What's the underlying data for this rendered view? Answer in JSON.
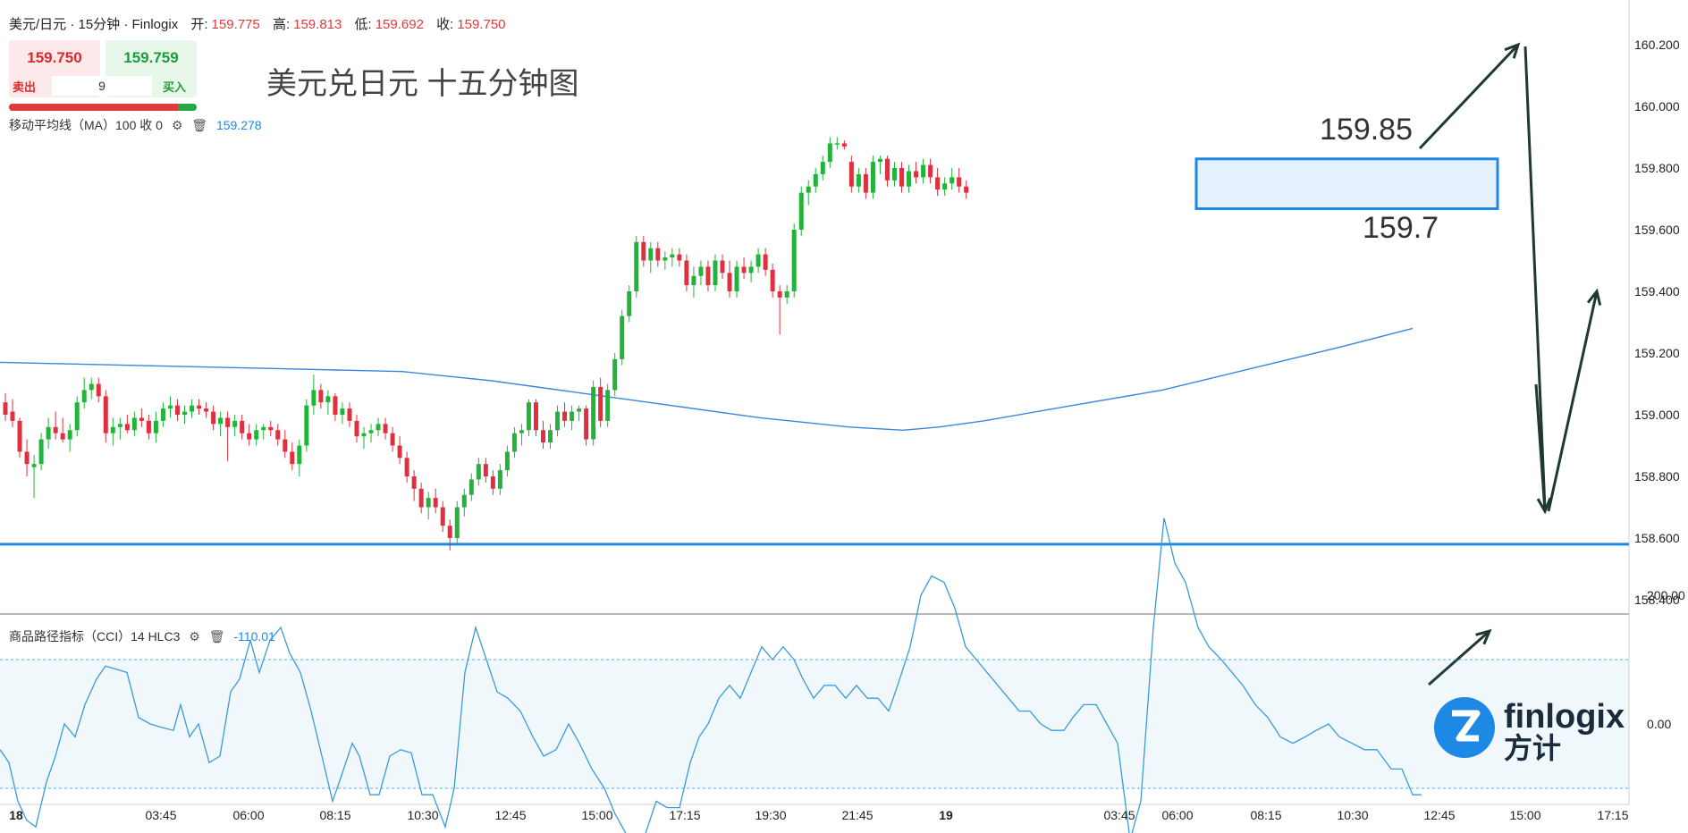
{
  "header": {
    "symbol": "美元/日元 · 15分钟 · Finlogix",
    "open_label": "开:",
    "open": "159.775",
    "high_label": "高:",
    "high": "159.813",
    "low_label": "低:",
    "low": "159.692",
    "close_label": "收:",
    "close": "159.750"
  },
  "trade": {
    "sell_price": "159.750",
    "buy_price": "159.759",
    "quantity": "9",
    "sell_label": "卖出",
    "buy_label": "买入",
    "spread_fill": 0.9
  },
  "ma": {
    "label": "移动平均线（MA）100 收 0",
    "value": "159.278"
  },
  "cci": {
    "label": "商品路径指标（CCI）14 HLC3",
    "value": "-110.01"
  },
  "big_title": "美元兑日元 十五分钟图",
  "colors": {
    "up": "#22b33a",
    "down": "#e0303f",
    "ma": "#3a86d8",
    "support": "#1e88e5",
    "cci": "#3a9ad9",
    "box": "#1e88e5",
    "arrow": "#1f3a2c"
  },
  "icons": [
    "gear-icon",
    "trash-icon"
  ],
  "logo": {
    "brand": "finlogix",
    "brand_cn": "方计"
  },
  "chart_data": {
    "type": "candlestick",
    "title": "美元兑日元 十五分钟图",
    "y_range": [
      158.3,
      160.3
    ],
    "y_ticks": [
      "160.200",
      "160.000",
      "159.800",
      "159.600",
      "159.400",
      "159.200",
      "159.000",
      "158.800",
      "158.600",
      "158.400"
    ],
    "x_ticks": [
      "18",
      "03:45",
      "06:00",
      "08:15",
      "10:30",
      "12:45",
      "15:00",
      "17:15",
      "19:30",
      "21:45",
      "19",
      "03:45",
      "06:00",
      "08:15",
      "10:30",
      "12:45",
      "15:00",
      "17:15"
    ],
    "support_level": 158.58,
    "range_box": {
      "high": 159.85,
      "low": 159.7,
      "high_label": "159.85",
      "low_label": "159.7"
    },
    "ma100_last": 159.278,
    "ohlc": [
      [
        159.04,
        159.07,
        158.98,
        159.0
      ],
      [
        159.01,
        159.05,
        158.96,
        158.98
      ],
      [
        158.98,
        158.99,
        158.86,
        158.88
      ],
      [
        158.88,
        158.92,
        158.8,
        158.84
      ],
      [
        158.83,
        158.87,
        158.73,
        158.84
      ],
      [
        158.84,
        158.94,
        158.82,
        158.92
      ],
      [
        158.92,
        158.99,
        158.89,
        158.96
      ],
      [
        158.96,
        159.01,
        158.92,
        158.94
      ],
      [
        158.94,
        158.99,
        158.91,
        158.92
      ],
      [
        158.92,
        158.97,
        158.88,
        158.95
      ],
      [
        158.95,
        159.06,
        158.93,
        159.04
      ],
      [
        159.04,
        159.12,
        159.02,
        159.08
      ],
      [
        159.08,
        159.12,
        159.05,
        159.1
      ],
      [
        159.1,
        159.12,
        159.04,
        159.06
      ],
      [
        159.06,
        159.08,
        158.91,
        158.94
      ],
      [
        158.94,
        158.99,
        158.9,
        158.96
      ],
      [
        158.96,
        158.99,
        158.92,
        158.97
      ],
      [
        158.97,
        159.0,
        158.94,
        158.95
      ],
      [
        158.95,
        159.01,
        158.93,
        158.99
      ],
      [
        158.99,
        159.02,
        158.96,
        158.98
      ],
      [
        158.98,
        159.0,
        158.92,
        158.94
      ],
      [
        158.94,
        159.01,
        158.91,
        158.98
      ],
      [
        158.98,
        159.04,
        158.96,
        159.02
      ],
      [
        159.02,
        159.06,
        158.99,
        159.03
      ],
      [
        159.03,
        159.05,
        158.98,
        159.0
      ],
      [
        159.0,
        159.03,
        158.97,
        159.01
      ],
      [
        159.01,
        159.05,
        158.99,
        159.03
      ],
      [
        159.03,
        159.05,
        159.0,
        159.02
      ],
      [
        159.02,
        159.04,
        158.99,
        159.01
      ],
      [
        159.01,
        159.03,
        158.95,
        158.97
      ],
      [
        158.97,
        159.01,
        158.93,
        158.99
      ],
      [
        158.99,
        159.01,
        158.85,
        158.96
      ],
      [
        158.96,
        159.0,
        158.93,
        158.98
      ],
      [
        158.98,
        159.0,
        158.92,
        158.94
      ],
      [
        158.94,
        158.97,
        158.9,
        158.92
      ],
      [
        158.92,
        158.97,
        158.9,
        158.95
      ],
      [
        158.95,
        158.97,
        158.92,
        158.96
      ],
      [
        158.96,
        158.98,
        158.93,
        158.95
      ],
      [
        158.95,
        158.97,
        158.9,
        158.92
      ],
      [
        158.92,
        158.95,
        158.86,
        158.88
      ],
      [
        158.88,
        158.91,
        158.82,
        158.84
      ],
      [
        158.84,
        158.92,
        158.8,
        158.9
      ],
      [
        158.9,
        159.05,
        158.88,
        159.03
      ],
      [
        159.03,
        159.13,
        159.0,
        159.08
      ],
      [
        159.08,
        159.1,
        159.02,
        159.04
      ],
      [
        159.04,
        159.08,
        159.0,
        159.06
      ],
      [
        159.06,
        159.07,
        158.98,
        159.0
      ],
      [
        159.0,
        159.04,
        158.97,
        159.02
      ],
      [
        159.02,
        159.04,
        158.96,
        158.98
      ],
      [
        158.98,
        159.0,
        158.91,
        158.93
      ],
      [
        158.93,
        158.96,
        158.89,
        158.94
      ],
      [
        158.94,
        158.97,
        158.91,
        158.95
      ],
      [
        158.95,
        158.99,
        158.93,
        158.97
      ],
      [
        158.97,
        158.99,
        158.92,
        158.94
      ],
      [
        158.94,
        158.96,
        158.88,
        158.9
      ],
      [
        158.9,
        158.93,
        158.84,
        158.86
      ],
      [
        158.86,
        158.88,
        158.78,
        158.8
      ],
      [
        158.8,
        158.82,
        158.72,
        158.76
      ],
      [
        158.76,
        158.78,
        158.68,
        158.7
      ],
      [
        158.7,
        158.75,
        158.66,
        158.73
      ],
      [
        158.73,
        158.76,
        158.68,
        158.7
      ],
      [
        158.7,
        158.72,
        158.62,
        158.64
      ],
      [
        158.64,
        158.66,
        158.56,
        158.6
      ],
      [
        158.6,
        158.72,
        158.58,
        158.7
      ],
      [
        158.7,
        158.76,
        158.67,
        158.74
      ],
      [
        158.74,
        158.81,
        158.72,
        158.79
      ],
      [
        158.79,
        158.86,
        158.77,
        158.84
      ],
      [
        158.84,
        158.86,
        158.78,
        158.8
      ],
      [
        158.8,
        158.82,
        158.74,
        158.76
      ],
      [
        158.76,
        158.84,
        158.74,
        158.82
      ],
      [
        158.82,
        158.9,
        158.8,
        158.88
      ],
      [
        158.88,
        158.96,
        158.86,
        158.94
      ],
      [
        158.94,
        158.97,
        158.9,
        158.95
      ],
      [
        158.95,
        159.05,
        158.93,
        159.04
      ],
      [
        159.04,
        159.05,
        158.93,
        158.95
      ],
      [
        158.95,
        158.98,
        158.89,
        158.91
      ],
      [
        158.91,
        158.97,
        158.89,
        158.95
      ],
      [
        158.95,
        159.03,
        158.93,
        159.01
      ],
      [
        159.01,
        159.04,
        158.96,
        158.98
      ],
      [
        158.98,
        159.03,
        158.95,
        159.01
      ],
      [
        159.01,
        159.03,
        158.98,
        159.02
      ],
      [
        159.02,
        159.03,
        158.9,
        158.92
      ],
      [
        158.92,
        159.11,
        158.9,
        159.09
      ],
      [
        159.09,
        159.12,
        158.96,
        158.98
      ],
      [
        158.98,
        159.1,
        158.96,
        159.08
      ],
      [
        159.08,
        159.2,
        159.06,
        159.18
      ],
      [
        159.18,
        159.34,
        159.16,
        159.32
      ],
      [
        159.32,
        159.42,
        159.3,
        159.4
      ],
      [
        159.4,
        159.58,
        159.38,
        159.56
      ],
      [
        159.56,
        159.58,
        159.48,
        159.5
      ],
      [
        159.5,
        159.56,
        159.46,
        159.54
      ],
      [
        159.54,
        159.56,
        159.48,
        159.5
      ],
      [
        159.5,
        159.53,
        159.47,
        159.51
      ],
      [
        159.51,
        159.54,
        159.48,
        159.52
      ],
      [
        159.52,
        159.54,
        159.48,
        159.5
      ],
      [
        159.5,
        159.52,
        159.4,
        159.42
      ],
      [
        159.42,
        159.48,
        159.38,
        159.45
      ],
      [
        159.45,
        159.5,
        159.42,
        159.48
      ],
      [
        159.48,
        159.5,
        159.4,
        159.42
      ],
      [
        159.42,
        159.52,
        159.4,
        159.5
      ],
      [
        159.5,
        159.52,
        159.44,
        159.46
      ],
      [
        159.46,
        159.5,
        159.38,
        159.4
      ],
      [
        159.4,
        159.5,
        159.38,
        159.48
      ],
      [
        159.48,
        159.51,
        159.44,
        159.46
      ],
      [
        159.46,
        159.5,
        159.43,
        159.48
      ],
      [
        159.48,
        159.54,
        159.46,
        159.52
      ],
      [
        159.52,
        159.54,
        159.45,
        159.47
      ],
      [
        159.47,
        159.49,
        159.38,
        159.4
      ],
      [
        159.4,
        159.42,
        159.26,
        159.38
      ],
      [
        159.38,
        159.42,
        159.36,
        159.4
      ],
      [
        159.4,
        159.62,
        159.38,
        159.6
      ],
      [
        159.6,
        159.74,
        159.58,
        159.72
      ],
      [
        159.72,
        159.76,
        159.68,
        159.74
      ],
      [
        159.74,
        159.8,
        159.72,
        159.78
      ],
      [
        159.78,
        159.84,
        159.76,
        159.82
      ],
      [
        159.82,
        159.9,
        159.8,
        159.88
      ],
      [
        159.88,
        159.9,
        159.86,
        159.88
      ],
      [
        159.88,
        159.89,
        159.86,
        159.87
      ],
      [
        159.82,
        159.84,
        159.72,
        159.74
      ],
      [
        159.74,
        159.8,
        159.72,
        159.78
      ],
      [
        159.78,
        159.8,
        159.7,
        159.72
      ],
      [
        159.72,
        159.84,
        159.7,
        159.82
      ],
      [
        159.82,
        159.84,
        159.78,
        159.83
      ],
      [
        159.83,
        159.84,
        159.74,
        159.76
      ],
      [
        159.76,
        159.82,
        159.74,
        159.8
      ],
      [
        159.8,
        159.82,
        159.72,
        159.74
      ],
      [
        159.74,
        159.81,
        159.72,
        159.79
      ],
      [
        159.79,
        159.82,
        159.75,
        159.77
      ],
      [
        159.77,
        159.83,
        159.75,
        159.81
      ],
      [
        159.81,
        159.83,
        159.75,
        159.77
      ],
      [
        159.77,
        159.8,
        159.71,
        159.73
      ],
      [
        159.73,
        159.77,
        159.71,
        159.75
      ],
      [
        159.75,
        159.8,
        159.73,
        159.77
      ],
      [
        159.77,
        159.8,
        159.72,
        159.74
      ],
      [
        159.74,
        159.76,
        159.7,
        159.72
      ]
    ],
    "ma100": [
      [
        0,
        159.17
      ],
      [
        150,
        159.16
      ],
      [
        300,
        159.15
      ],
      [
        450,
        159.14
      ],
      [
        550,
        159.11
      ],
      [
        650,
        159.07
      ],
      [
        750,
        159.03
      ],
      [
        850,
        158.99
      ],
      [
        950,
        158.96
      ],
      [
        1010,
        158.95
      ],
      [
        1050,
        158.96
      ],
      [
        1100,
        158.98
      ],
      [
        1200,
        159.03
      ],
      [
        1300,
        159.08
      ],
      [
        1400,
        159.15
      ],
      [
        1500,
        159.22
      ],
      [
        1580,
        159.28
      ]
    ],
    "cci_range": [
      -200,
      200
    ],
    "cci_ticks": [
      "200.00",
      "0.00",
      "-200.00"
    ],
    "cci_band": [
      100,
      -100
    ],
    "cci": [
      [
        0,
        -40
      ],
      [
        10,
        -60
      ],
      [
        20,
        -120
      ],
      [
        30,
        -150
      ],
      [
        40,
        -160
      ],
      [
        52,
        -90
      ],
      [
        62,
        -50
      ],
      [
        72,
        0
      ],
      [
        84,
        -20
      ],
      [
        95,
        30
      ],
      [
        108,
        70
      ],
      [
        118,
        90
      ],
      [
        130,
        85
      ],
      [
        142,
        80
      ],
      [
        155,
        10
      ],
      [
        168,
        0
      ],
      [
        180,
        -5
      ],
      [
        194,
        -10
      ],
      [
        202,
        30
      ],
      [
        212,
        -20
      ],
      [
        222,
        0
      ],
      [
        234,
        -60
      ],
      [
        246,
        -50
      ],
      [
        258,
        50
      ],
      [
        268,
        70
      ],
      [
        280,
        130
      ],
      [
        290,
        80
      ],
      [
        302,
        130
      ],
      [
        314,
        150
      ],
      [
        324,
        110
      ],
      [
        336,
        80
      ],
      [
        348,
        20
      ],
      [
        360,
        -50
      ],
      [
        372,
        -120
      ],
      [
        382,
        -80
      ],
      [
        394,
        -30
      ],
      [
        402,
        -50
      ],
      [
        414,
        -110
      ],
      [
        424,
        -110
      ],
      [
        436,
        -50
      ],
      [
        448,
        -40
      ],
      [
        460,
        -45
      ],
      [
        472,
        -110
      ],
      [
        484,
        -110
      ],
      [
        498,
        -160
      ],
      [
        508,
        -100
      ],
      [
        520,
        80
      ],
      [
        532,
        150
      ],
      [
        544,
        100
      ],
      [
        556,
        50
      ],
      [
        568,
        40
      ],
      [
        582,
        20
      ],
      [
        596,
        -20
      ],
      [
        608,
        -50
      ],
      [
        622,
        -40
      ],
      [
        636,
        0
      ],
      [
        648,
        -30
      ],
      [
        662,
        -70
      ],
      [
        676,
        -100
      ],
      [
        688,
        -140
      ],
      [
        700,
        -170
      ],
      [
        712,
        -190
      ],
      [
        722,
        -170
      ],
      [
        734,
        -120
      ],
      [
        746,
        -130
      ],
      [
        760,
        -130
      ],
      [
        772,
        -60
      ],
      [
        782,
        -20
      ],
      [
        792,
        0
      ],
      [
        804,
        40
      ],
      [
        816,
        60
      ],
      [
        828,
        40
      ],
      [
        840,
        80
      ],
      [
        852,
        120
      ],
      [
        864,
        100
      ],
      [
        876,
        120
      ],
      [
        888,
        100
      ],
      [
        898,
        70
      ],
      [
        910,
        40
      ],
      [
        922,
        60
      ],
      [
        934,
        60
      ],
      [
        946,
        40
      ],
      [
        958,
        60
      ],
      [
        970,
        40
      ],
      [
        982,
        40
      ],
      [
        994,
        20
      ],
      [
        1004,
        60
      ],
      [
        1018,
        120
      ],
      [
        1030,
        200
      ],
      [
        1042,
        230
      ],
      [
        1056,
        220
      ],
      [
        1068,
        180
      ],
      [
        1080,
        120
      ],
      [
        1092,
        100
      ],
      [
        1104,
        80
      ],
      [
        1116,
        60
      ],
      [
        1128,
        40
      ],
      [
        1140,
        20
      ],
      [
        1152,
        20
      ],
      [
        1164,
        0
      ],
      [
        1176,
        -10
      ],
      [
        1190,
        -10
      ],
      [
        1200,
        10
      ],
      [
        1212,
        30
      ],
      [
        1226,
        30
      ],
      [
        1238,
        0
      ],
      [
        1250,
        -30
      ],
      [
        1264,
        -180
      ],
      [
        1276,
        -120
      ],
      [
        1290,
        150
      ],
      [
        1302,
        320
      ],
      [
        1314,
        250
      ],
      [
        1326,
        220
      ],
      [
        1340,
        150
      ],
      [
        1352,
        120
      ],
      [
        1366,
        100
      ],
      [
        1378,
        80
      ],
      [
        1390,
        60
      ],
      [
        1404,
        30
      ],
      [
        1418,
        10
      ],
      [
        1432,
        -20
      ],
      [
        1446,
        -30
      ],
      [
        1460,
        -20
      ],
      [
        1472,
        -10
      ],
      [
        1486,
        0
      ],
      [
        1498,
        -20
      ],
      [
        1512,
        -30
      ],
      [
        1526,
        -40
      ],
      [
        1540,
        -40
      ],
      [
        1556,
        -70
      ],
      [
        1568,
        -70
      ],
      [
        1580,
        -110
      ],
      [
        1590,
        -110
      ]
    ]
  }
}
